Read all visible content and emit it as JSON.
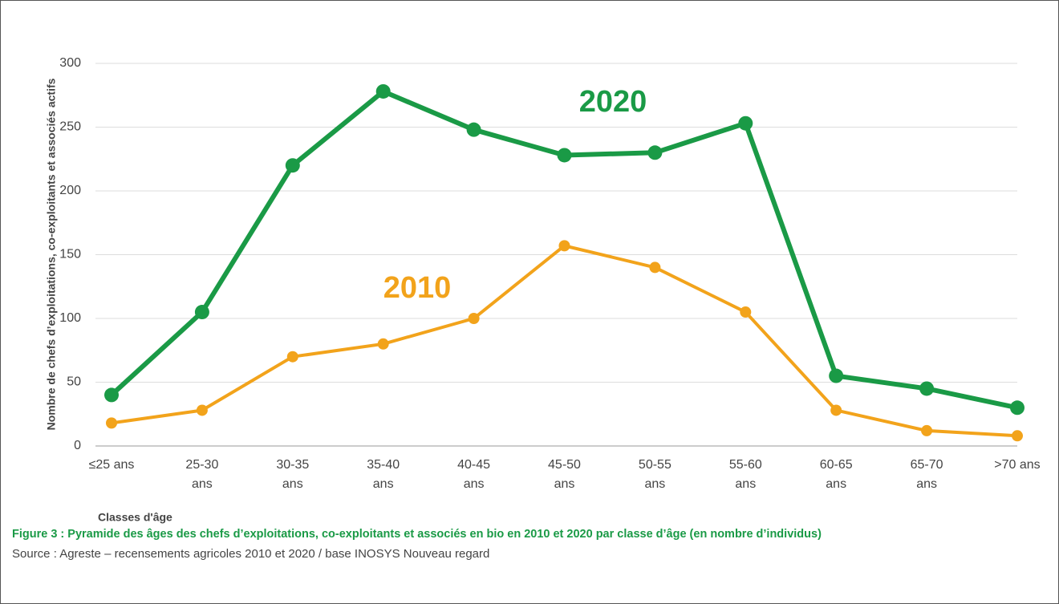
{
  "chart_data": {
    "type": "line",
    "y_label": "Nombre de chefs d’exploitations, co-exploitants et associés actifs",
    "x_label": "Classes d'âge",
    "categories": [
      "≤25 ans",
      "25-30 ans",
      "30-35 ans",
      "35-40 ans",
      "40-45 ans",
      "45-50 ans",
      "50-55 ans",
      "55-60 ans",
      "60-65 ans",
      "65-70 ans",
      ">70 ans"
    ],
    "series": [
      {
        "name": "2020",
        "color": "#1a9a46",
        "values": [
          40,
          105,
          220,
          278,
          248,
          228,
          230,
          253,
          55,
          45,
          30
        ]
      },
      {
        "name": "2010",
        "color": "#f2a31b",
        "values": [
          18,
          28,
          70,
          80,
          100,
          157,
          140,
          105,
          28,
          12,
          8
        ]
      }
    ],
    "ylim": [
      0,
      300
    ],
    "yticks": [
      0,
      50,
      100,
      150,
      200,
      250,
      300
    ],
    "grid": true,
    "caption": "Figure 3 : Pyramide des âges des chefs d’exploitations, co-exploitants et associés en bio en 2010 et 2020 par classe d’âge (en nombre d’individus)",
    "source": "Source : Agreste – recensements agricoles 2010 et 2020 / base INOSYS Nouveau regard"
  }
}
